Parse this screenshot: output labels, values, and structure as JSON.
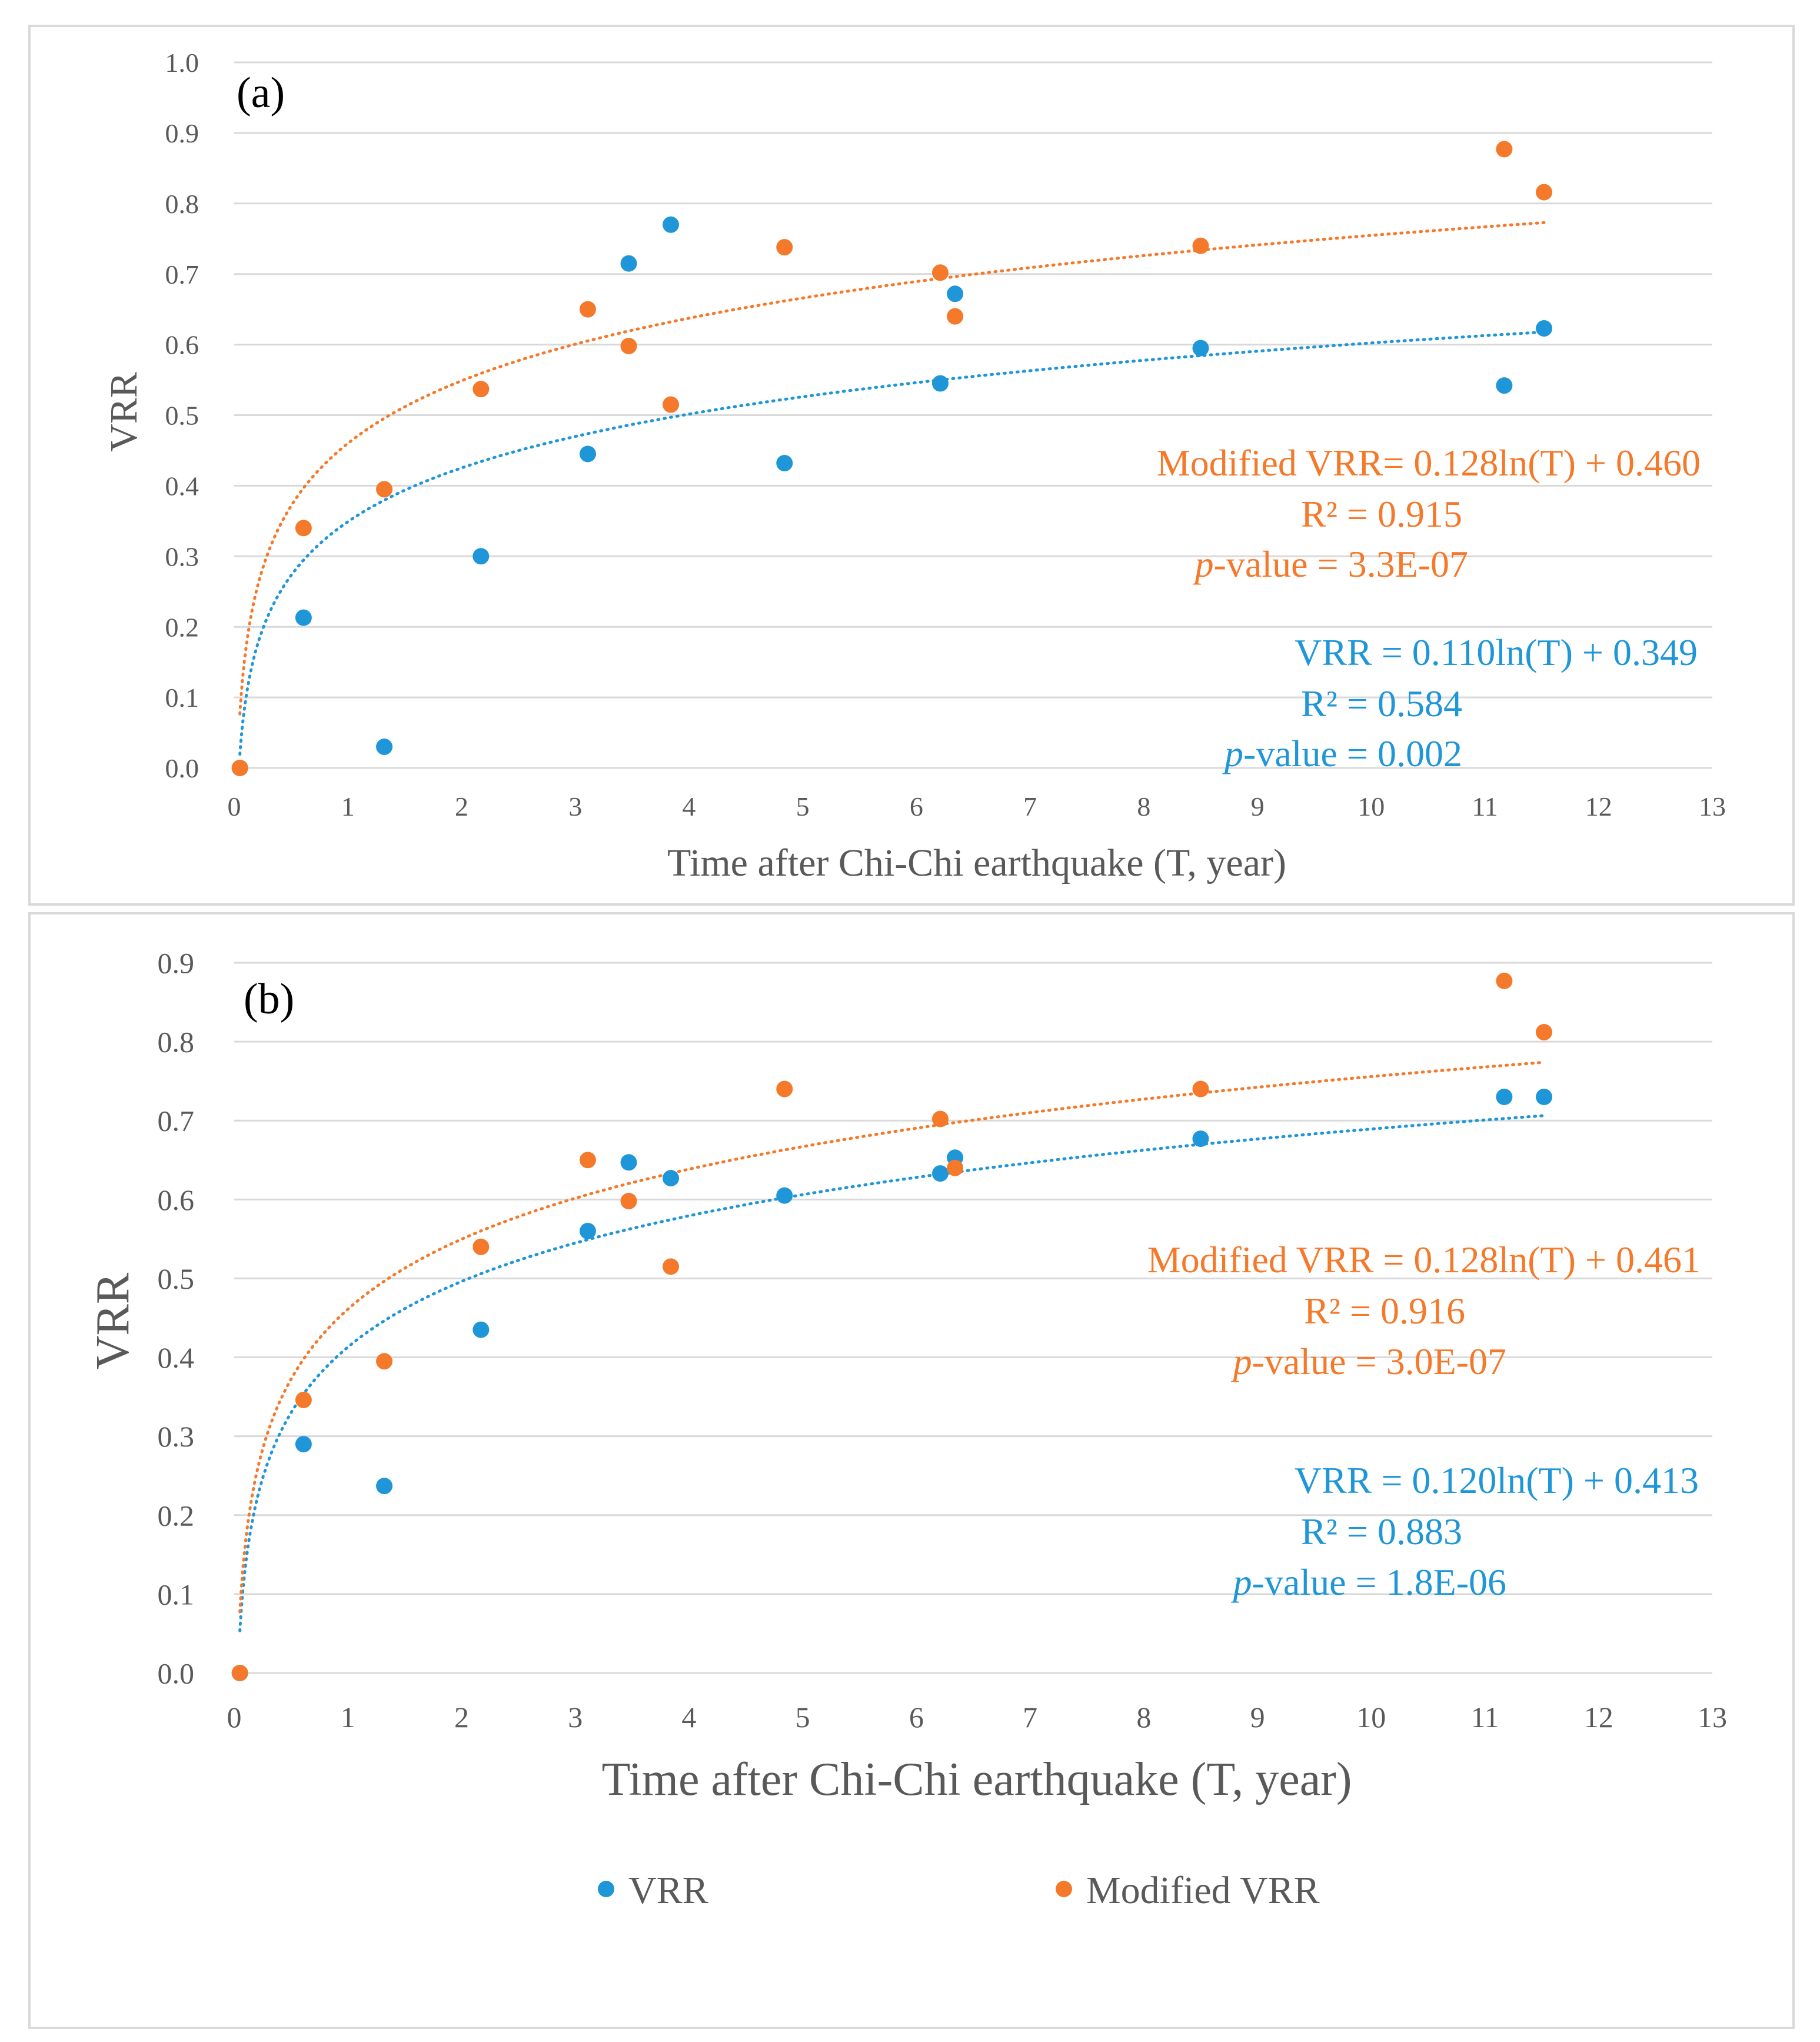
{
  "colors": {
    "vrr": "#1f96d8",
    "modified": "#f5792a",
    "grid": "#d9d9d9",
    "text": "#595959",
    "axis": "#d9d9d9"
  },
  "legend": {
    "vrr": "VRR",
    "modified": "Modified VRR"
  },
  "chart_data": [
    {
      "type": "scatter",
      "panel_label": "(a)",
      "xlabel": "Time after Chi-Chi earthquake (T, year)",
      "ylabel": "VRR",
      "xlim": [
        0,
        13
      ],
      "ylim": [
        0,
        1.0
      ],
      "xticks": [
        0,
        1,
        2,
        3,
        4,
        5,
        6,
        7,
        8,
        9,
        10,
        11,
        12,
        13
      ],
      "yticks": [
        "0.0",
        "0.1",
        "0.2",
        "0.3",
        "0.4",
        "0.5",
        "0.6",
        "0.7",
        "0.8",
        "0.9",
        "1.0"
      ],
      "x": [
        0.05,
        0.61,
        1.32,
        2.17,
        3.11,
        3.47,
        3.84,
        4.84,
        6.21,
        6.34,
        8.5,
        11.17,
        11.52
      ],
      "series": [
        {
          "name": "VRR",
          "values": [
            0.0,
            0.213,
            0.03,
            0.3,
            0.445,
            0.715,
            0.77,
            0.432,
            0.545,
            0.672,
            0.595,
            0.542,
            0.623
          ],
          "trend": {
            "a": 0.11,
            "b": 0.349
          }
        },
        {
          "name": "Modified VRR",
          "values": [
            0.0,
            0.34,
            0.395,
            0.537,
            0.65,
            0.598,
            0.515,
            0.738,
            0.702,
            0.64,
            0.74,
            0.877,
            0.816
          ],
          "trend": {
            "a": 0.128,
            "b": 0.46
          }
        }
      ],
      "annotations": {
        "modified": {
          "eq": "Modified VRR= 0.128ln(T) + 0.460",
          "r2": "R² = 0.915",
          "p_label": "p",
          "p_rest": "-value = 3.3E-07"
        },
        "vrr": {
          "eq": "VRR = 0.110ln(T) + 0.349",
          "r2": "R² = 0.584",
          "p_label": "p",
          "p_rest": "-value = 0.002"
        }
      }
    },
    {
      "type": "scatter",
      "panel_label": "(b)",
      "xlabel": "Time after Chi-Chi earthquake (T, year)",
      "ylabel": "VRR",
      "xlim": [
        0,
        13
      ],
      "ylim": [
        0,
        0.9
      ],
      "xticks": [
        0,
        1,
        2,
        3,
        4,
        5,
        6,
        7,
        8,
        9,
        10,
        11,
        12,
        13
      ],
      "yticks": [
        "0.0",
        "0.1",
        "0.2",
        "0.3",
        "0.4",
        "0.5",
        "0.6",
        "0.7",
        "0.8",
        "0.9"
      ],
      "x": [
        0.05,
        0.61,
        1.32,
        2.17,
        3.11,
        3.47,
        3.84,
        4.84,
        6.21,
        6.34,
        8.5,
        11.17,
        11.52
      ],
      "series": [
        {
          "name": "VRR",
          "values": [
            0.0,
            0.29,
            0.237,
            0.435,
            0.56,
            0.647,
            0.627,
            0.605,
            0.633,
            0.653,
            0.677,
            0.73,
            0.73
          ],
          "trend": {
            "a": 0.12,
            "b": 0.413
          }
        },
        {
          "name": "Modified VRR",
          "values": [
            0.0,
            0.346,
            0.395,
            0.54,
            0.65,
            0.598,
            0.515,
            0.74,
            0.702,
            0.64,
            0.74,
            0.877,
            0.812
          ],
          "trend": {
            "a": 0.128,
            "b": 0.461
          }
        }
      ],
      "annotations": {
        "modified": {
          "eq": "Modified VRR = 0.128ln(T) + 0.461",
          "r2": "R² = 0.916",
          "p_label": "p",
          "p_rest": "-value = 3.0E-07"
        },
        "vrr": {
          "eq": "VRR = 0.120ln(T) + 0.413",
          "r2": "R² = 0.883",
          "p_label": "p",
          "p_rest": "-value = 1.8E-06"
        }
      }
    }
  ]
}
